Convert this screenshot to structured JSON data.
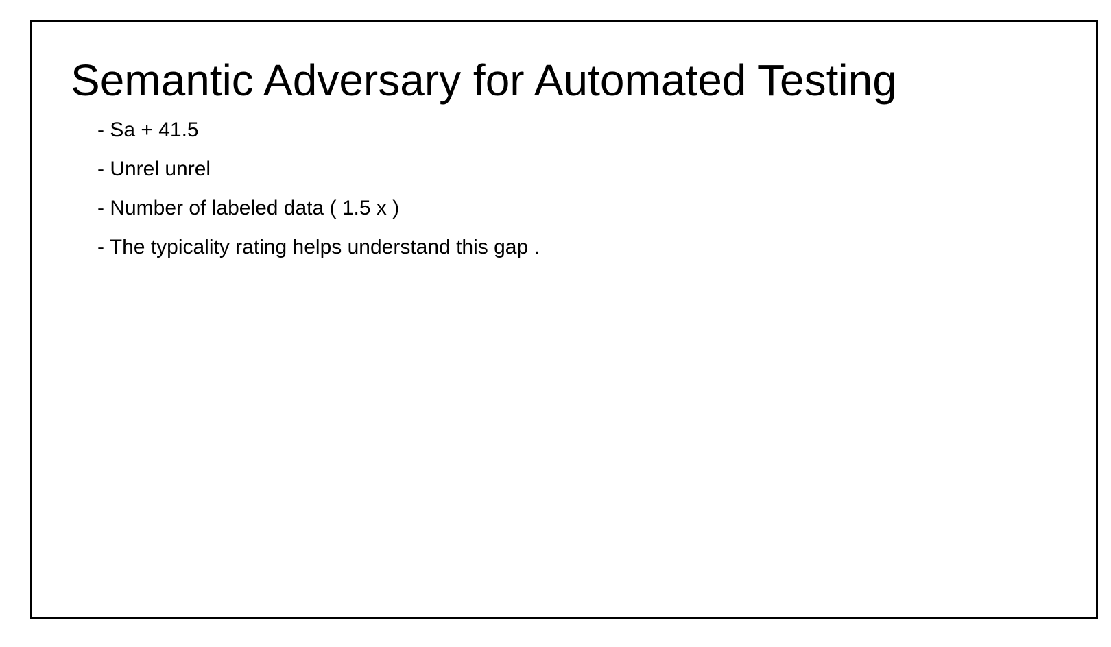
{
  "slide": {
    "title": "Semantic Adversary for Automated Testing",
    "bullets": [
      "- Sa + 41.5",
      "- Unrel unrel",
      "- Number of labeled data ( 1.5 x )",
      "- The typicality rating helps understand this gap ."
    ]
  }
}
